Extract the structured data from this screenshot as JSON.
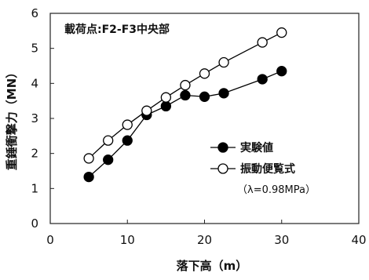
{
  "chart_data": {
    "type": "line",
    "annotation": "載荷点:F2-F3中央部",
    "xlabel": "落下高（m）",
    "ylabel": "重錘衝撃力（MN）",
    "xlim": [
      0,
      40
    ],
    "ylim": [
      0,
      6
    ],
    "xticks": [
      "0",
      "10",
      "20",
      "30",
      "40"
    ],
    "yticks": [
      "0",
      "1",
      "2",
      "3",
      "4",
      "5",
      "6"
    ],
    "grid": false,
    "legend_position": "right",
    "legend_note": "（λ=0.98MPa）",
    "series": [
      {
        "name": "実験値",
        "marker": "filled-circle",
        "color": "#000000",
        "points": [
          [
            5,
            1.33
          ],
          [
            7.5,
            1.82
          ],
          [
            10,
            2.37
          ],
          [
            12.5,
            3.1
          ],
          [
            15,
            3.35
          ],
          [
            17.5,
            3.66
          ],
          [
            20,
            3.62
          ],
          [
            22.5,
            3.72
          ],
          [
            27.5,
            4.12
          ],
          [
            30,
            4.35
          ]
        ]
      },
      {
        "name": "振動便覧式",
        "marker": "open-circle",
        "color": "#000000",
        "points": [
          [
            5,
            1.86
          ],
          [
            7.5,
            2.37
          ],
          [
            10,
            2.82
          ],
          [
            12.5,
            3.22
          ],
          [
            15,
            3.6
          ],
          [
            17.5,
            3.95
          ],
          [
            20,
            4.28
          ],
          [
            22.5,
            4.6
          ],
          [
            27.5,
            5.17
          ],
          [
            30,
            5.45
          ]
        ]
      }
    ]
  }
}
